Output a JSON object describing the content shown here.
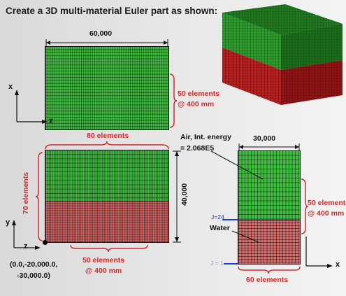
{
  "title": "Create a 3D multi-material Euler part as shown:",
  "top_view": {
    "width_label": "60,000",
    "elements_label_line1": "50 elements",
    "elements_label_line2": "@ 400 mm",
    "axis_vertical": "x",
    "axis_horizontal": "z"
  },
  "front_view": {
    "top_elements_label": "80 elements",
    "side_elements_label": "70 elements",
    "height_label": "40,000",
    "bottom_elements_line1": "50 elements",
    "bottom_elements_line2": "@ 400 mm",
    "origin_line1": "(0.0,-20,000.0,",
    "origin_line2": "-30,000.0)",
    "axis_vertical": "y",
    "axis_horizontal": "z"
  },
  "side_view": {
    "width_label": "30,000",
    "air_label_line1": "Air, Int. energy",
    "air_label_line2": "= 2.068E5",
    "water_label": "Water",
    "j24_label": "J=24",
    "j1_label": "J = 1",
    "elements_line1": "50 element",
    "elements_line2": "@ 400 mm",
    "bottom_elements_label": "60 elements",
    "axis_horizontal": "x"
  },
  "colors": {
    "air_green": "#3fbf3f",
    "water_red": "#e06a6a",
    "annotation_red": "#d42a2a"
  }
}
